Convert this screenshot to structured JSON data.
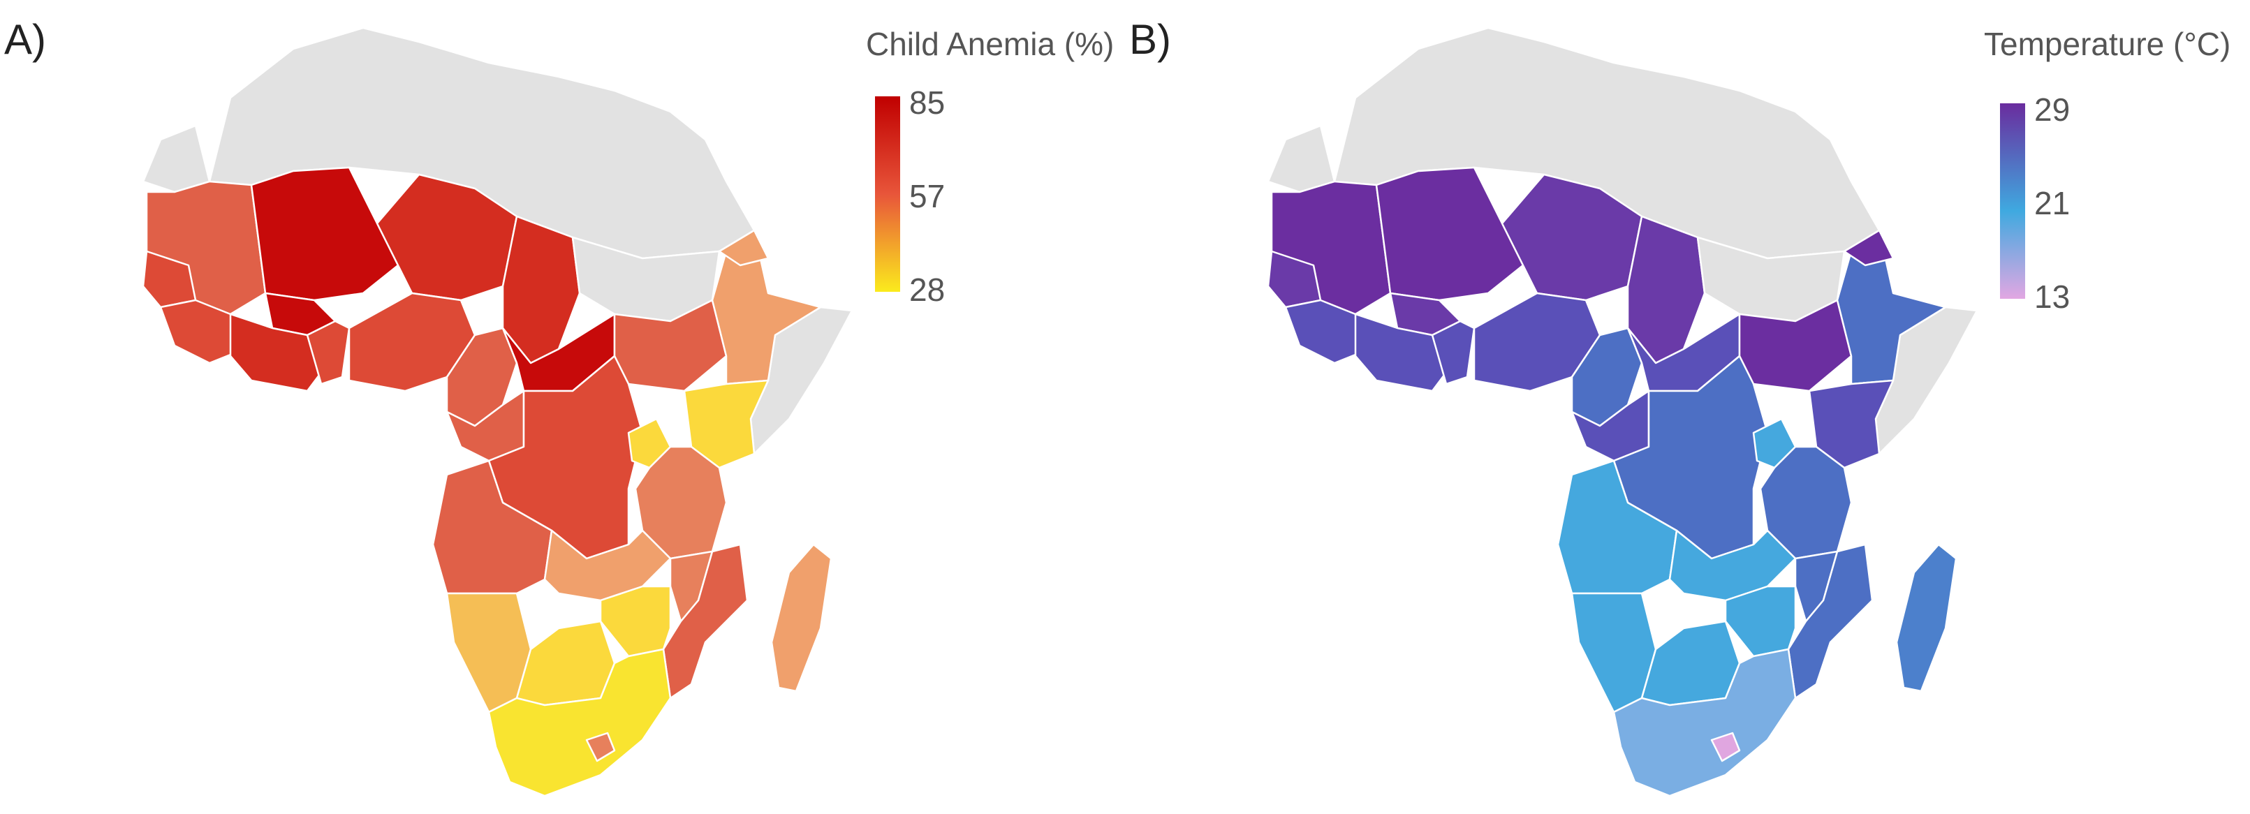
{
  "panels": [
    {
      "label": "A)",
      "legend": {
        "title": "Child Anemia (%)",
        "max": "85",
        "mid": "57",
        "min": "28"
      },
      "colors": {
        "nodata": "#e2e2e2",
        "c1": "#c70a0a",
        "c2": "#d42d20",
        "c3": "#dd4a36",
        "c4": "#e06048",
        "c5": "#e7805c",
        "c6": "#f0a06c",
        "c7": "#f5be55",
        "c8": "#fbd93c",
        "c9": "#f9e430"
      }
    },
    {
      "label": "B)",
      "legend": {
        "title": "Temperature (°C)",
        "max": "29",
        "mid": "21",
        "min": "13"
      },
      "colors": {
        "nodata": "#e2e2e2",
        "c1": "#6b2ea0",
        "c2": "#6a3aa8",
        "c3": "#5a50b8",
        "c4": "#4d6fc4",
        "c5": "#4c80cc",
        "c6": "#4a8fd3",
        "c7": "#45a8de",
        "c8": "#7aaee3",
        "c9": "#e0a6e0"
      }
    }
  ]
}
